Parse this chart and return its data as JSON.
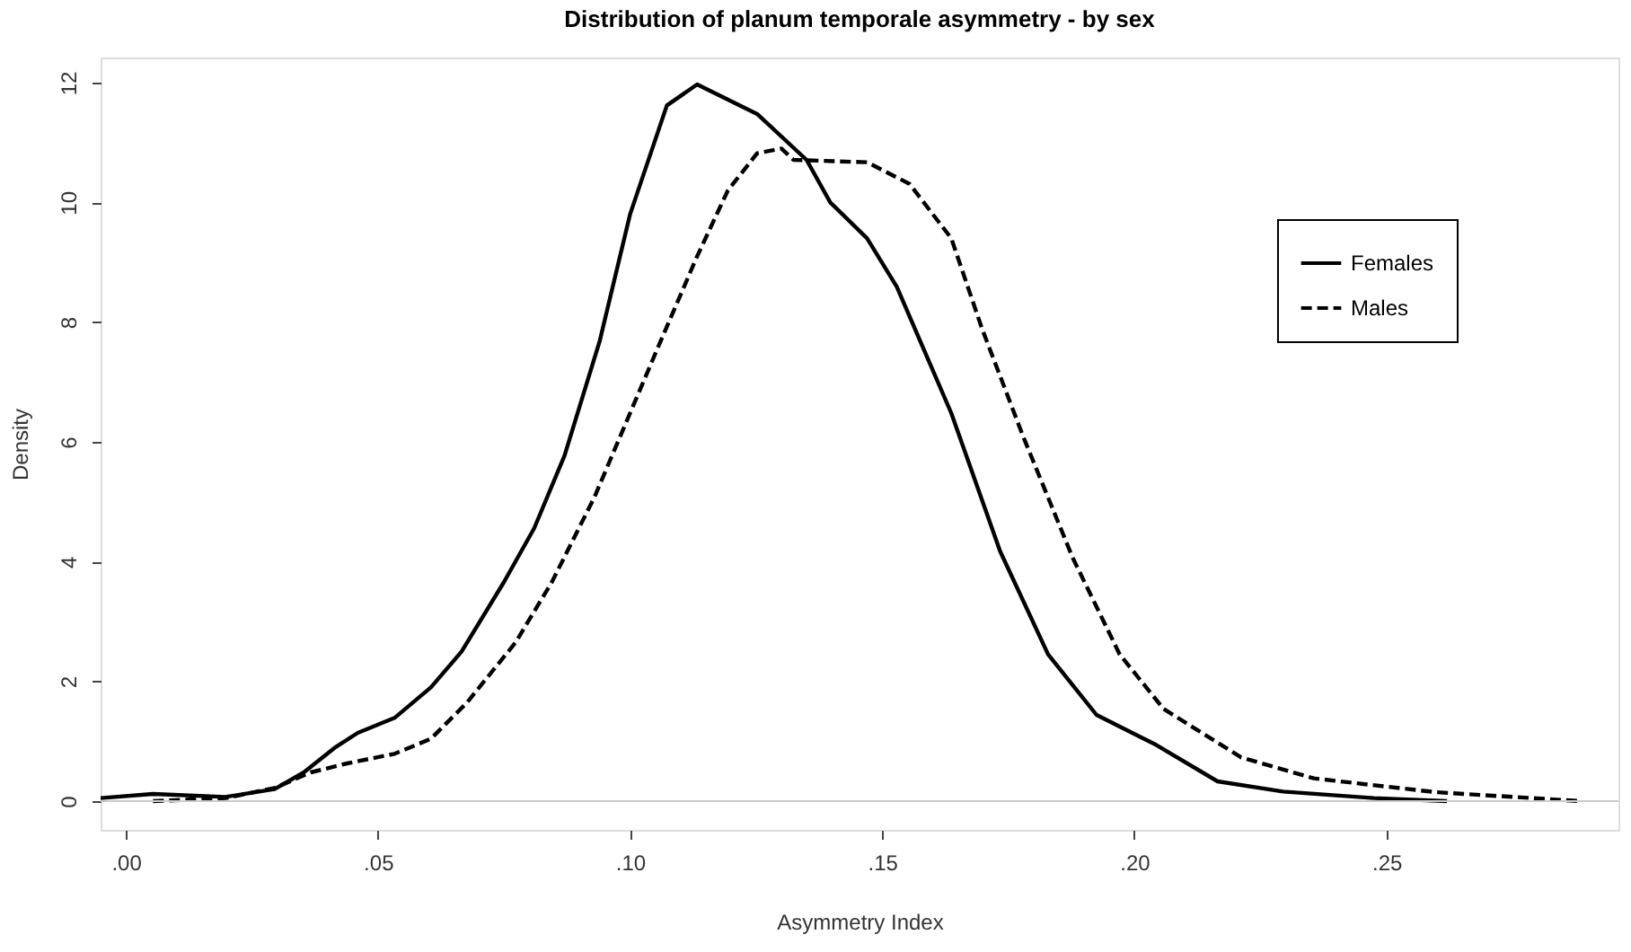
{
  "chart_data": {
    "type": "line",
    "title": "Distribution of planum temporale asymmetry - by sex",
    "xlabel": "Asymmetry Index",
    "ylabel": "Density",
    "xlim": [
      -0.005,
      0.296
    ],
    "ylim": [
      -0.48,
      12.42
    ],
    "xticks": [
      {
        "value": 0,
        "label": ".00"
      },
      {
        "value": 0.05,
        "label": ".05"
      },
      {
        "value": 0.1,
        "label": ".10"
      },
      {
        "value": 0.15,
        "label": ".15"
      },
      {
        "value": 0.2,
        "label": ".20"
      },
      {
        "value": 0.25,
        "label": ".25"
      }
    ],
    "yticks": [
      0,
      2,
      4,
      6,
      8,
      10,
      12
    ],
    "grid": false,
    "legend": "top right",
    "marker": "none",
    "ref_lines": [
      {
        "axis": "y",
        "value": 0,
        "color": "#cccccc"
      }
    ],
    "series": [
      {
        "name": "Females",
        "color": "#000000",
        "line_style": "solid",
        "x": [
          -0.005,
          0.0054,
          0.0198,
          0.0295,
          0.0353,
          0.0414,
          0.046,
          0.0533,
          0.0605,
          0.0666,
          0.075,
          0.081,
          0.087,
          0.094,
          0.1,
          0.1073,
          0.1133,
          0.1253,
          0.135,
          0.1397,
          0.147,
          0.1529,
          0.1637,
          0.1734,
          0.1829,
          0.1925,
          0.2043,
          0.2165,
          0.2295,
          0.2475,
          0.262
        ],
        "values": [
          0.05,
          0.12,
          0.07,
          0.2,
          0.48,
          0.89,
          1.14,
          1.39,
          1.9,
          2.5,
          3.66,
          4.56,
          5.77,
          7.69,
          9.8,
          11.62,
          11.97,
          11.47,
          10.71,
          10.0,
          9.4,
          8.59,
          6.48,
          4.17,
          2.45,
          1.44,
          0.94,
          0.33,
          0.16,
          0.05,
          0.0
        ]
      },
      {
        "name": "Males",
        "color": "#000000",
        "line_style": "dashed",
        "x": [
          0.0054,
          0.0198,
          0.0295,
          0.0367,
          0.0439,
          0.0533,
          0.0605,
          0.0676,
          0.0773,
          0.0845,
          0.0929,
          0.1,
          0.1061,
          0.1133,
          0.1194,
          0.1252,
          0.13,
          0.1324,
          0.147,
          0.1554,
          0.1637,
          0.1698,
          0.178,
          0.1878,
          0.1971,
          0.2058,
          0.2212,
          0.2356,
          0.2597,
          0.2885
        ],
        "values": [
          0.0,
          0.05,
          0.22,
          0.48,
          0.63,
          0.79,
          1.04,
          1.64,
          2.65,
          3.66,
          5.07,
          6.48,
          7.69,
          9.1,
          10.2,
          10.82,
          10.9,
          10.71,
          10.67,
          10.31,
          9.4,
          7.89,
          6.08,
          4.06,
          2.45,
          1.54,
          0.73,
          0.38,
          0.15,
          0.0
        ]
      }
    ]
  }
}
